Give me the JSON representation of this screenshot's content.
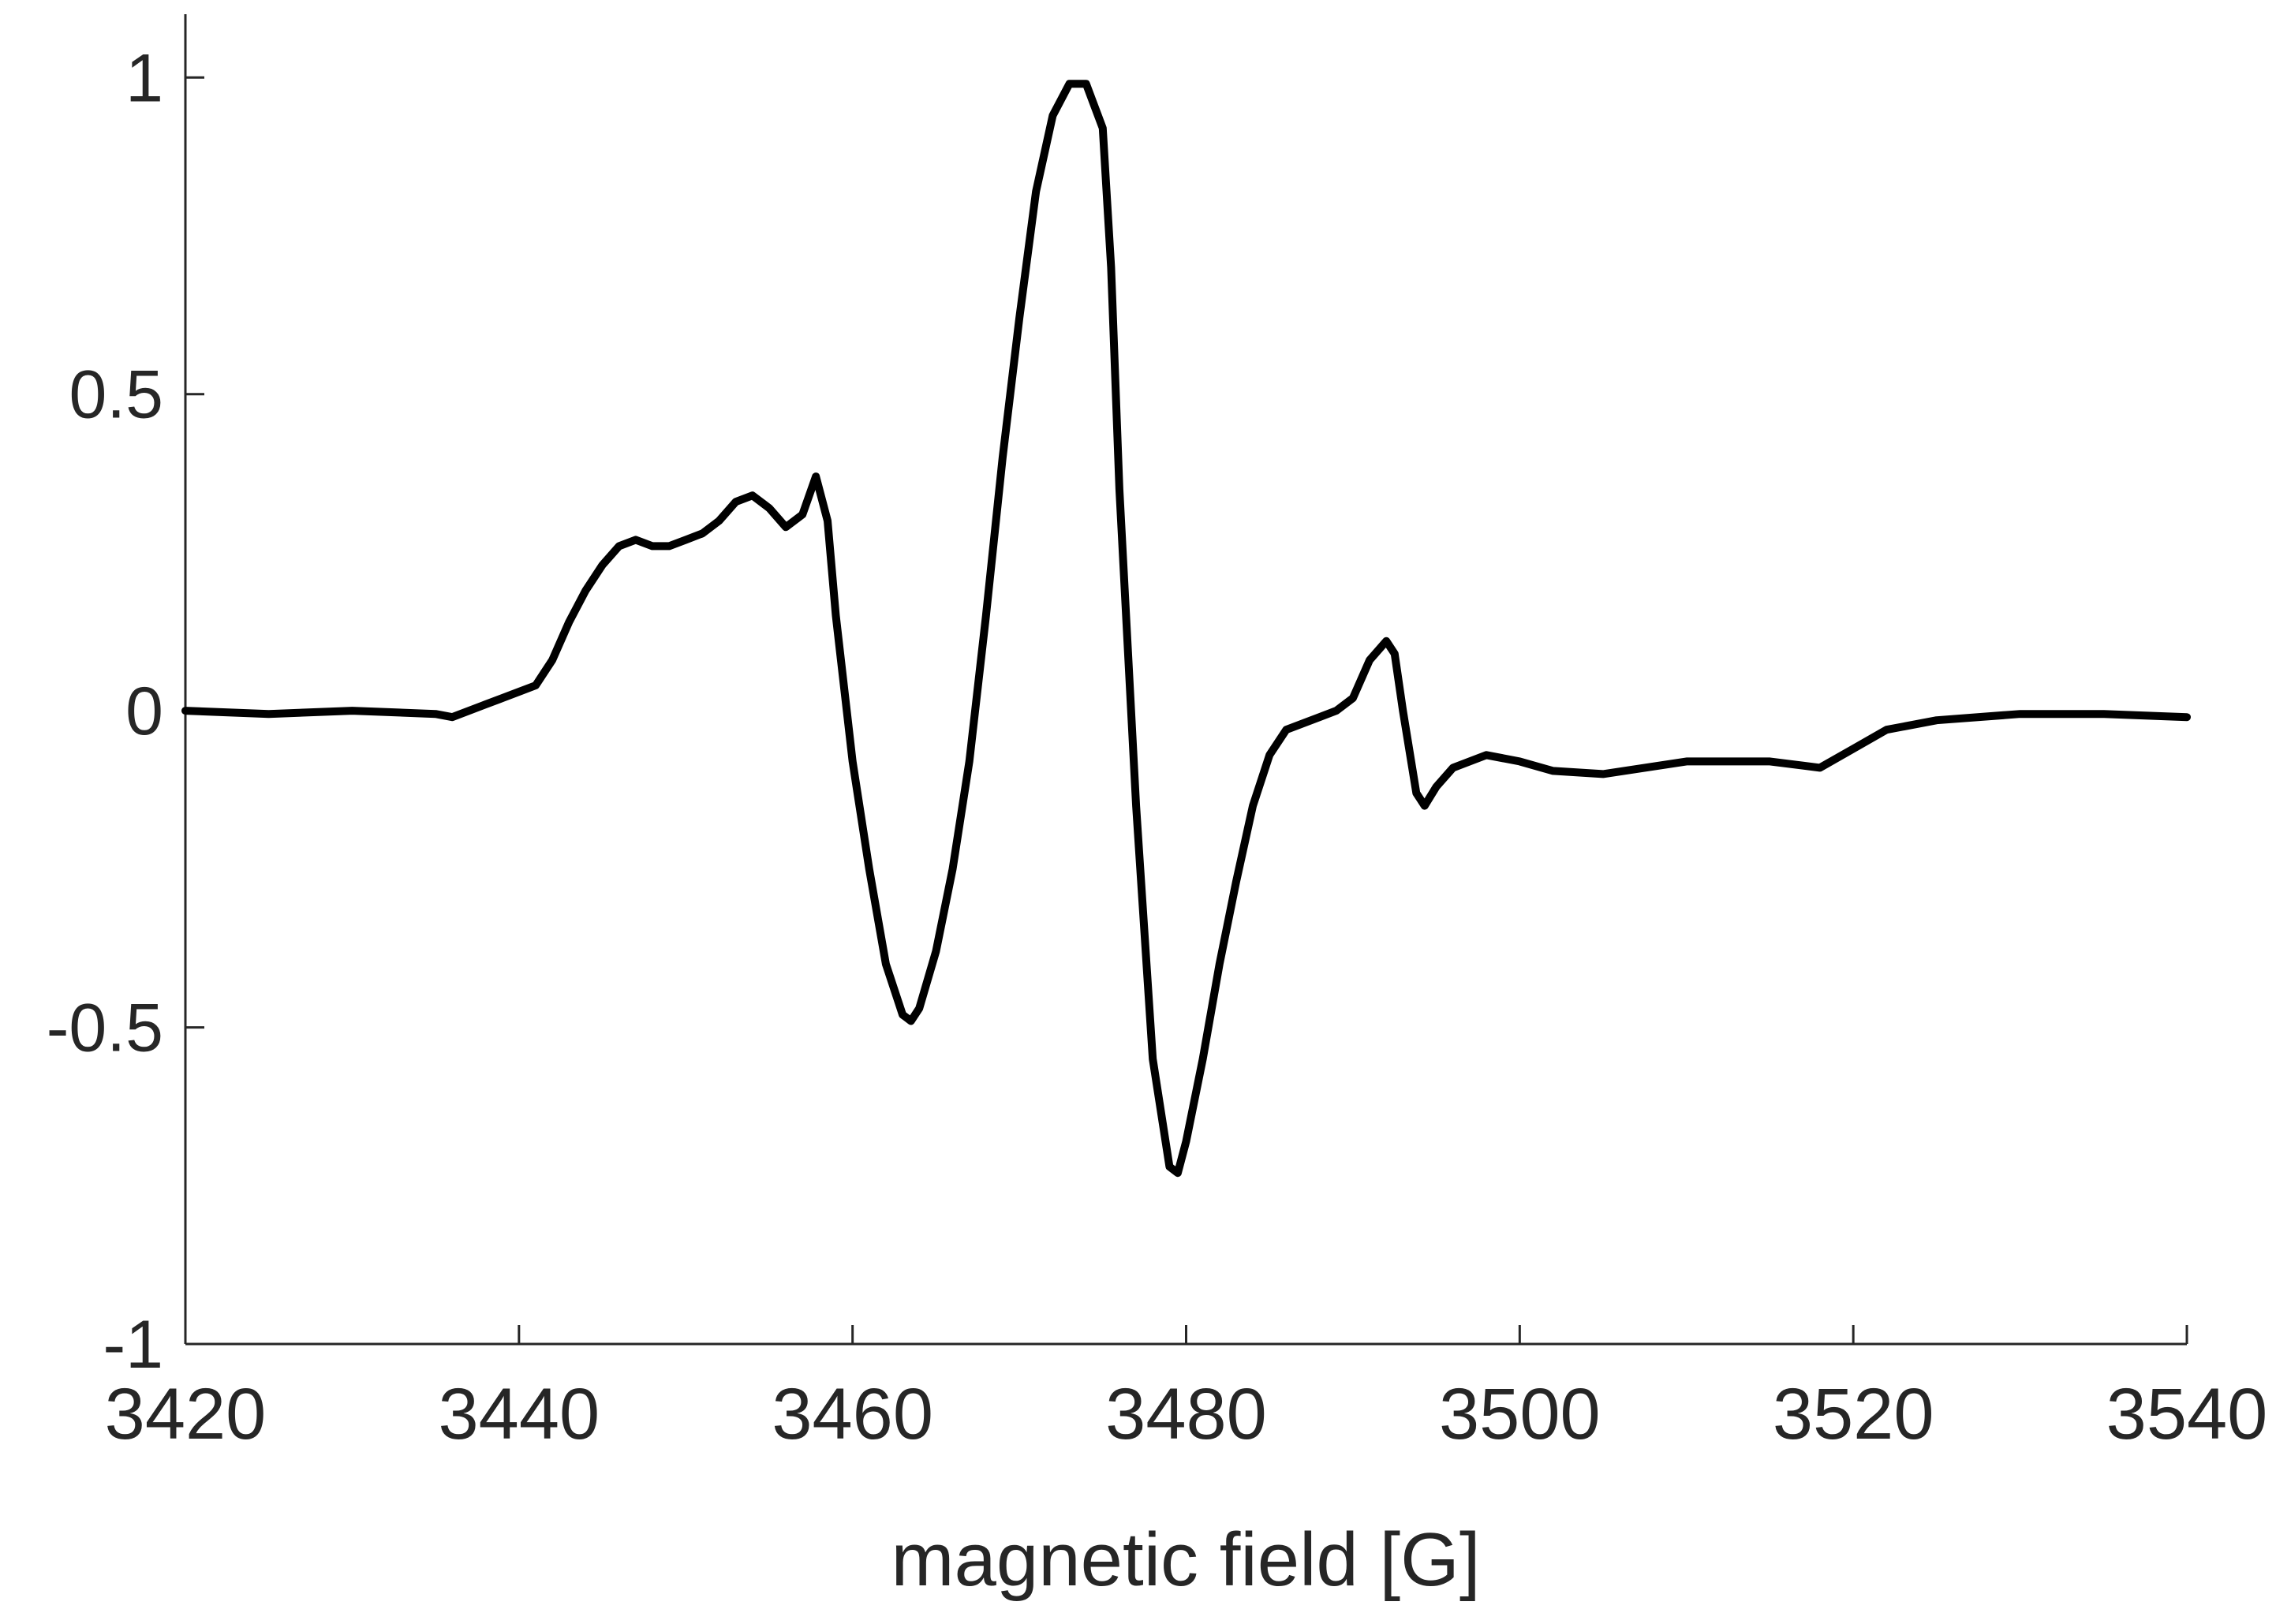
{
  "chart_data": {
    "type": "line",
    "xlabel": "magnetic field [G]",
    "xlim": [
      3420,
      3540
    ],
    "ylim": [
      -1,
      1.1
    ],
    "xticks": [
      3420,
      3440,
      3460,
      3480,
      3500,
      3520,
      3540
    ],
    "yticks": [
      -1,
      -0.5,
      0,
      0.5,
      1
    ],
    "color": "#000000",
    "x": [
      3420,
      3425,
      3430,
      3435,
      3436,
      3438,
      3440,
      3441,
      3442,
      3443,
      3444,
      3445,
      3446,
      3447,
      3448,
      3449,
      3450,
      3451,
      3452,
      3453,
      3454,
      3455,
      3456,
      3457,
      3457.8,
      3458.5,
      3459,
      3460,
      3461,
      3462,
      3463,
      3463.5,
      3464,
      3465,
      3466,
      3467,
      3468,
      3469,
      3470,
      3471,
      3472,
      3473,
      3474,
      3475,
      3475.5,
      3476,
      3477,
      3478,
      3479,
      3479.5,
      3480,
      3481,
      3482,
      3483,
      3484,
      3485,
      3486,
      3487,
      3488,
      3489,
      3490,
      3491,
      3492,
      3492.5,
      3493,
      3493.8,
      3494.3,
      3495,
      3496,
      3498,
      3500,
      3502,
      3505,
      3510,
      3515,
      3518,
      3520,
      3522,
      3525,
      3530,
      3535,
      3540
    ],
    "values": [
      0,
      -0.005,
      0,
      -0.005,
      -0.01,
      0.01,
      0.03,
      0.04,
      0.08,
      0.14,
      0.19,
      0.23,
      0.26,
      0.27,
      0.26,
      0.26,
      0.27,
      0.28,
      0.3,
      0.33,
      0.34,
      0.32,
      0.29,
      0.31,
      0.37,
      0.3,
      0.15,
      -0.08,
      -0.25,
      -0.4,
      -0.48,
      -0.49,
      -0.47,
      -0.38,
      -0.25,
      -0.08,
      0.15,
      0.4,
      0.62,
      0.82,
      0.94,
      0.99,
      0.99,
      0.92,
      0.7,
      0.35,
      -0.15,
      -0.55,
      -0.72,
      -0.73,
      -0.68,
      -0.55,
      -0.4,
      -0.27,
      -0.15,
      -0.07,
      -0.03,
      -0.02,
      -0.01,
      0,
      0.02,
      0.08,
      0.11,
      0.09,
      0,
      -0.13,
      -0.15,
      -0.12,
      -0.09,
      -0.07,
      -0.08,
      -0.095,
      -0.1,
      -0.08,
      -0.08,
      -0.09,
      -0.06,
      -0.03,
      -0.015,
      -0.005,
      -0.005,
      -0.01
    ]
  }
}
